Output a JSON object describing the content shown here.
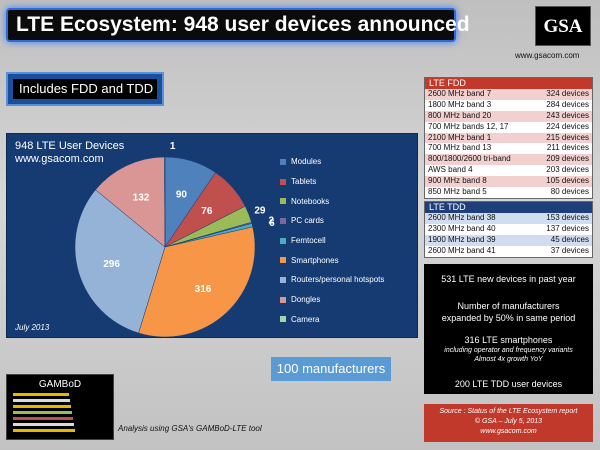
{
  "title": "LTE Ecosystem: 948 user devices announced",
  "logo": {
    "text": "GSA",
    "url": "www.gsacom.com"
  },
  "banner": "Includes FDD and TDD",
  "chart_data": {
    "type": "pie",
    "title": "948 LTE User Devices",
    "subtitle": "www.gsacom.com",
    "date": "July 2013",
    "slices": [
      {
        "name": "Modules",
        "value": 90,
        "color": "#4f81bd"
      },
      {
        "name": "Tablets",
        "value": 76,
        "color": "#c0504d"
      },
      {
        "name": "Notebooks",
        "value": 29,
        "color": "#9bbb59"
      },
      {
        "name": "PC cards",
        "value": 2,
        "color": "#8064a2"
      },
      {
        "name": "Femtocell",
        "value": 6,
        "color": "#4bacc6"
      },
      {
        "name": "Smartphones",
        "value": 316,
        "color": "#f79646"
      },
      {
        "name": "Routers/personal hotspots",
        "value": 296,
        "color": "#95b3d7"
      },
      {
        "name": "Dongles",
        "value": 132,
        "color": "#d99694"
      },
      {
        "name": "Camera",
        "value": 1,
        "color": "#a5d6a7"
      }
    ]
  },
  "manufacturers": "100 manufacturers",
  "gambod": {
    "title": "GAMBoD",
    "caption": "Analysis using GSA's GAMBoD-LTE tool",
    "line_colors": [
      "#e6b800",
      "#d9d9d9",
      "#e6b800",
      "#9bbb59",
      "#c0504d",
      "#d9d9d9",
      "#e6b800"
    ]
  },
  "fdd": {
    "header": "LTE FDD",
    "header_color": "#c0392b",
    "row_color_a": "#f2d0cf",
    "row_color_b": "#ffffff",
    "rows": [
      {
        "band": "2600 MHz band 7",
        "devices": "324 devices"
      },
      {
        "band": "1800 MHz band 3",
        "devices": "284 devices"
      },
      {
        "band": "800 MHz band 20",
        "devices": "243 devices"
      },
      {
        "band": "700 MHz bands 12, 17",
        "devices": "224 devices"
      },
      {
        "band": "2100 MHz band 1",
        "devices": "215 devices"
      },
      {
        "band": "700 MHz band 13",
        "devices": "211 devices"
      },
      {
        "band": "800/1800/2600 tri-band",
        "devices": "209 devices"
      },
      {
        "band": "AWS band 4",
        "devices": "203 devices"
      },
      {
        "band": "900 MHz band 8",
        "devices": "105 devices"
      },
      {
        "band": "850 MHz band 5",
        "devices": "80 devices"
      }
    ]
  },
  "tdd": {
    "header": "LTE TDD",
    "header_color": "#1f3f7a",
    "row_color_a": "#d0dcef",
    "row_color_b": "#ffffff",
    "rows": [
      {
        "band": "2600 MHz band 38",
        "devices": "153 devices"
      },
      {
        "band": "2300 MHz band 40",
        "devices": "137 devices"
      },
      {
        "band": "1900 MHz band 39",
        "devices": "45 devices"
      },
      {
        "band": "2600 MHz band 41",
        "devices": "37 devices"
      }
    ]
  },
  "info": {
    "line1": "531 LTE new devices in past year",
    "line2a": "Number of manufacturers",
    "line2b": "expanded by 50% in same period",
    "line3": "316 LTE smartphones",
    "line3a": "including operator and frequency variants",
    "line3b": "Almost 4x growth YoY",
    "line4": "200 LTE TDD user devices"
  },
  "source": {
    "line1": "Source : Status of the LTE Ecosystem report",
    "line2": "© GSA – July 5, 2013",
    "line3": "www.gsacom.com"
  }
}
